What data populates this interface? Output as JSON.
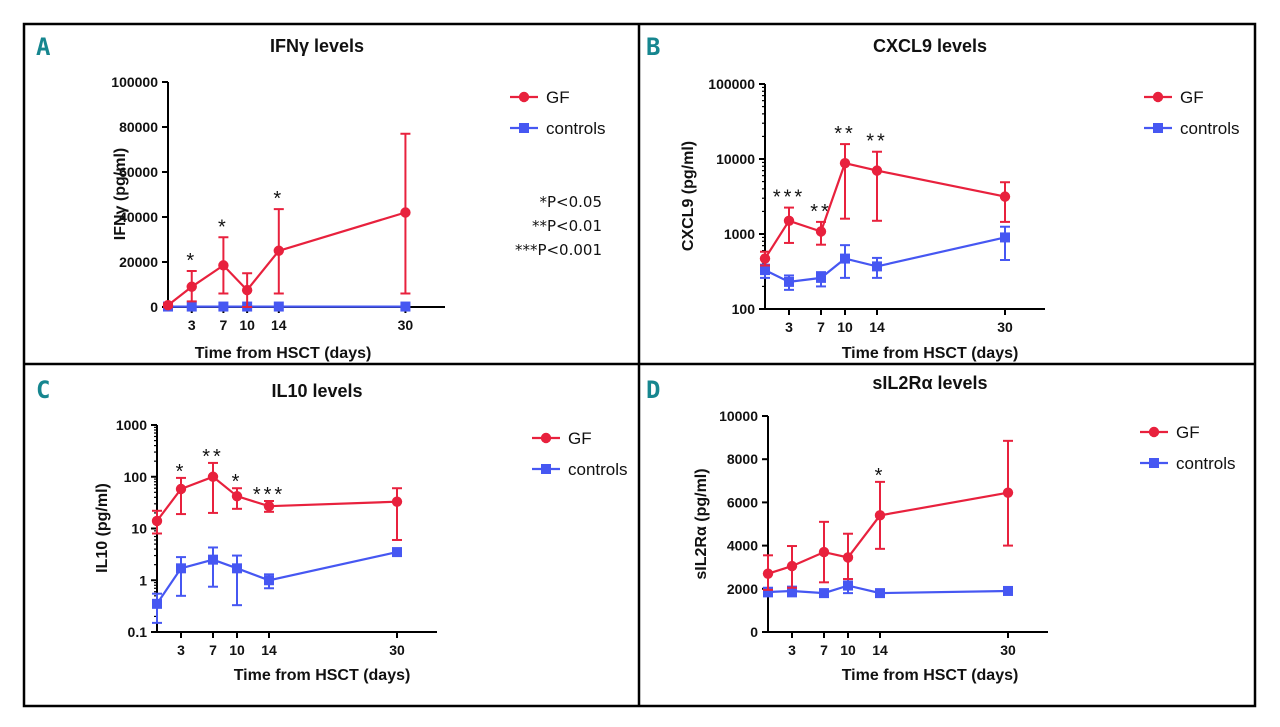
{
  "colors": {
    "gf": "#e8213d",
    "controls": "#4657f2",
    "letter": "#16868f",
    "border": "#000000"
  },
  "significance_legend": [
    "*P<0.05",
    "**P<0.01",
    "***P<0.001"
  ],
  "chart_data": [
    {
      "panel": "A",
      "type": "line",
      "title": "IFNγ levels",
      "xlabel": "Time from HSCT (days)",
      "ylabel": "IFNγ (pg/ml)",
      "yscale": "linear",
      "ylim": [
        0,
        100000
      ],
      "xlim": [
        0,
        35
      ],
      "xticks": [
        3,
        7,
        10,
        14,
        30
      ],
      "yticks": [
        0,
        20000,
        40000,
        60000,
        80000,
        100000
      ],
      "ytick_labels": [
        "0",
        "20000",
        "40000",
        "60000",
        "80000",
        "100000"
      ],
      "legend": [
        "GF",
        "controls"
      ],
      "series": [
        {
          "name": "GF",
          "x": [
            0,
            3,
            7,
            10,
            14,
            30
          ],
          "values": [
            800,
            9000,
            18500,
            7500,
            25000,
            42000
          ],
          "err_low": [
            0,
            2500,
            6000,
            0,
            6000,
            6000
          ],
          "err_high": [
            1500,
            16000,
            31000,
            15000,
            43500,
            77000
          ]
        },
        {
          "name": "controls",
          "x": [
            0,
            3,
            7,
            10,
            14,
            30
          ],
          "values": [
            200,
            200,
            200,
            200,
            200,
            200
          ],
          "err_low": [
            200,
            200,
            200,
            200,
            200,
            200
          ],
          "err_high": [
            200,
            200,
            200,
            200,
            200,
            200
          ]
        }
      ],
      "annotations": [
        {
          "x": 3,
          "label": "*"
        },
        {
          "x": 7,
          "label": "*"
        },
        {
          "x": 14,
          "label": "*"
        }
      ]
    },
    {
      "panel": "B",
      "type": "line",
      "title": "CXCL9 levels",
      "xlabel": "Time from HSCT (days)",
      "ylabel": "CXCL9 (pg/ml)",
      "yscale": "log",
      "ylim": [
        100,
        100000
      ],
      "xlim": [
        0,
        35
      ],
      "xticks": [
        3,
        7,
        10,
        14,
        30
      ],
      "yticks": [
        100,
        1000,
        10000,
        100000
      ],
      "ytick_labels": [
        "100",
        "1000",
        "10000",
        "100000"
      ],
      "legend": [
        "GF",
        "controls"
      ],
      "series": [
        {
          "name": "GF",
          "x": [
            0,
            3,
            7,
            10,
            14,
            30
          ],
          "values": [
            470,
            1500,
            1080,
            8800,
            7000,
            3150
          ],
          "err_low": [
            380,
            760,
            720,
            1600,
            1500,
            1450
          ],
          "err_high": [
            580,
            2250,
            1450,
            15800,
            12500,
            4900
          ]
        },
        {
          "name": "controls",
          "x": [
            0,
            3,
            7,
            10,
            14,
            30
          ],
          "values": [
            330,
            230,
            260,
            470,
            370,
            900
          ],
          "err_low": [
            260,
            180,
            200,
            260,
            260,
            450
          ],
          "err_high": [
            390,
            280,
            310,
            710,
            480,
            1250
          ]
        }
      ],
      "annotations": [
        {
          "x": 3,
          "label": "***"
        },
        {
          "x": 7,
          "label": "**"
        },
        {
          "x": 10,
          "label": "**"
        },
        {
          "x": 14,
          "label": "**"
        }
      ]
    },
    {
      "panel": "C",
      "type": "line",
      "title": "IL10 levels",
      "xlabel": "Time from HSCT (days)",
      "ylabel": "IL10 (pg/ml)",
      "yscale": "log",
      "ylim": [
        0.1,
        1000
      ],
      "xlim": [
        0,
        35
      ],
      "xticks": [
        3,
        7,
        10,
        14,
        30
      ],
      "yticks": [
        0.1,
        1,
        10,
        100,
        1000
      ],
      "ytick_labels": [
        "0.1",
        "1",
        "10",
        "100",
        "1000"
      ],
      "legend": [
        "GF",
        "controls"
      ],
      "series": [
        {
          "name": "GF",
          "x": [
            0,
            3,
            7,
            10,
            14,
            30
          ],
          "values": [
            14,
            58,
            100,
            42,
            27,
            33
          ],
          "err_low": [
            8,
            19,
            20,
            24,
            21,
            6
          ],
          "err_high": [
            22,
            95,
            185,
            60,
            34,
            60
          ]
        },
        {
          "name": "controls",
          "x": [
            0,
            3,
            7,
            10,
            14,
            30
          ],
          "values": [
            0.35,
            1.7,
            2.5,
            1.7,
            1.0,
            3.5
          ],
          "err_low": [
            0.15,
            0.5,
            0.75,
            0.33,
            0.7,
            3.0
          ],
          "err_high": [
            0.55,
            2.8,
            4.3,
            3.0,
            1.3,
            4.1
          ]
        }
      ],
      "annotations": [
        {
          "x": 3,
          "label": "*"
        },
        {
          "x": 7,
          "label": "**"
        },
        {
          "x": 10,
          "label": "*"
        },
        {
          "x": 14,
          "label": "***"
        }
      ]
    },
    {
      "panel": "D",
      "type": "line",
      "title": "sIL2Rα levels",
      "xlabel": "Time from HSCT (days)",
      "ylabel": "sIL2Rα (pg/ml)",
      "yscale": "linear",
      "ylim": [
        0,
        10000
      ],
      "xlim": [
        0,
        35
      ],
      "xticks": [
        3,
        7,
        10,
        14,
        30
      ],
      "yticks": [
        0,
        2000,
        4000,
        6000,
        8000,
        10000
      ],
      "ytick_labels": [
        "0",
        "2000",
        "4000",
        "6000",
        "8000",
        "10000"
      ],
      "legend": [
        "GF",
        "controls"
      ],
      "series": [
        {
          "name": "GF",
          "x": [
            0,
            3,
            7,
            10,
            14,
            30
          ],
          "values": [
            2700,
            3050,
            3700,
            3450,
            5400,
            6450
          ],
          "err_low": [
            1950,
            2050,
            2300,
            2450,
            3850,
            4000
          ],
          "err_high": [
            3550,
            3980,
            5100,
            4550,
            6950,
            8850
          ]
        },
        {
          "name": "controls",
          "x": [
            0,
            3,
            7,
            10,
            14,
            30
          ],
          "values": [
            1850,
            1900,
            1800,
            2150,
            1800,
            1900
          ],
          "err_low": [
            1650,
            1650,
            1650,
            1800,
            1700,
            1800
          ],
          "err_high": [
            2050,
            2100,
            1950,
            2450,
            1900,
            2000
          ]
        }
      ],
      "annotations": [
        {
          "x": 14,
          "label": "*"
        }
      ]
    }
  ]
}
